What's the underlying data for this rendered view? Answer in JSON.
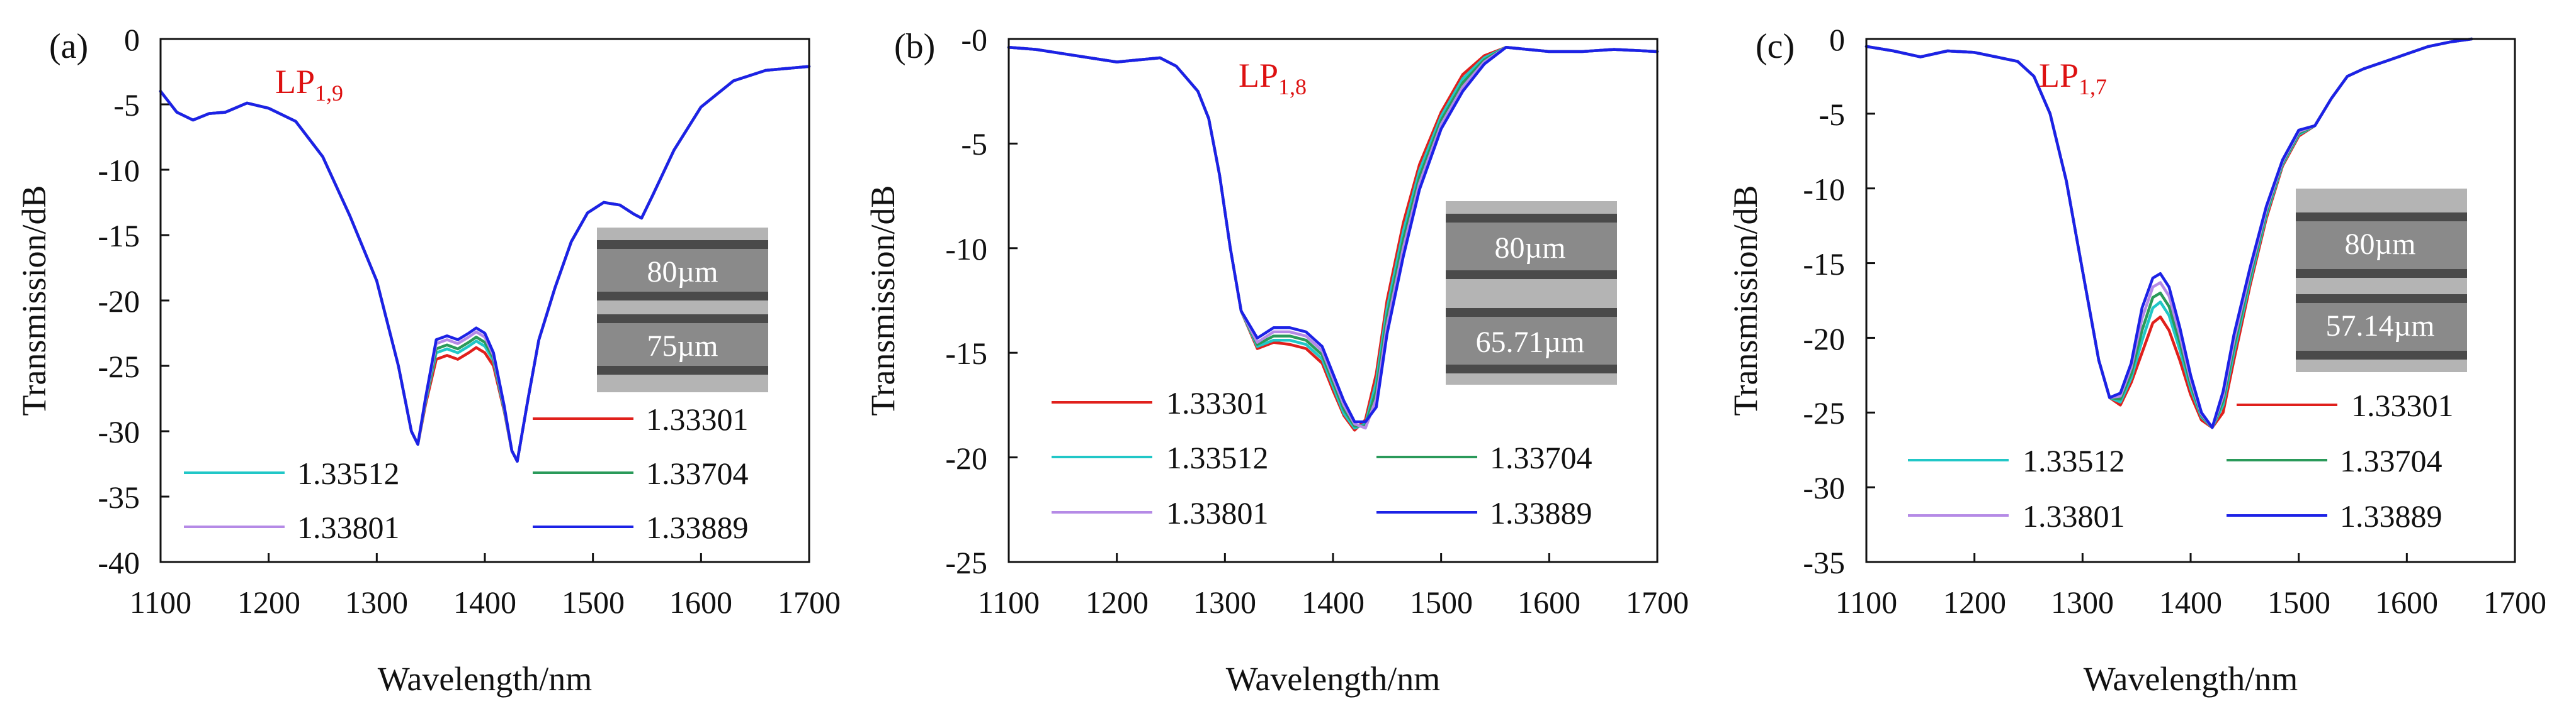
{
  "figure": {
    "series_colors": {
      "1.33301": "#e0201c",
      "1.33512": "#21c7c7",
      "1.33704": "#2a9a5a",
      "1.33801": "#b58ae6",
      "1.33889": "#1c22e6"
    },
    "inset_bg": "#b4b4b4",
    "annotation_color": "#dd1111"
  },
  "chart_data": [
    {
      "type": "line",
      "panel_label": "(a)",
      "xlabel": "Wavelength/nm",
      "ylabel": "Transmission/dB",
      "xlim": [
        1100,
        1700
      ],
      "ylim": [
        -40,
        0
      ],
      "xticks": [
        "1100",
        "1200",
        "1300",
        "1400",
        "1500",
        "1600",
        "1700"
      ],
      "yticks": [
        "0",
        "-5",
        "-10",
        "-15",
        "-20",
        "-25",
        "-30",
        "-35",
        "-40"
      ],
      "annotation": {
        "text": "LP",
        "sub": "1,9"
      },
      "inset": {
        "top_label": "80µm",
        "bottom_label": "75µm"
      },
      "legend": [
        {
          "name": "1.33301"
        },
        {
          "name": "1.33512"
        },
        {
          "name": "1.33704"
        },
        {
          "name": "1.33801"
        },
        {
          "name": "1.33889"
        }
      ],
      "x": [
        1100,
        1115,
        1130,
        1145,
        1160,
        1180,
        1200,
        1225,
        1250,
        1275,
        1300,
        1320,
        1332,
        1338,
        1345,
        1355,
        1365,
        1375,
        1385,
        1392,
        1400,
        1408,
        1418,
        1425,
        1430,
        1440,
        1450,
        1465,
        1480,
        1495,
        1510,
        1525,
        1538,
        1545,
        1555,
        1575,
        1600,
        1630,
        1660,
        1700
      ],
      "series": [
        {
          "name": "1.33301",
          "values": [
            -4,
            -5.6,
            -6.2,
            -5.7,
            -5.6,
            -4.9,
            -5.3,
            -6.3,
            -9,
            -13.5,
            -18.5,
            -25,
            -30,
            -31,
            -28,
            -24.5,
            -24.2,
            -24.5,
            -24,
            -23.6,
            -24,
            -25,
            -28.5,
            -31.5,
            -32.3,
            -27.5,
            -23,
            -19,
            -15.5,
            -13.3,
            -12.5,
            -12.7,
            -13.4,
            -13.7,
            -12,
            -8.5,
            -5.2,
            -3.2,
            -2.4,
            -2.1
          ]
        },
        {
          "name": "1.33512",
          "values": [
            -4,
            -5.6,
            -6.2,
            -5.7,
            -5.6,
            -4.9,
            -5.3,
            -6.3,
            -9,
            -13.5,
            -18.5,
            -25,
            -30,
            -31,
            -27.8,
            -24,
            -23.7,
            -24,
            -23.5,
            -23.1,
            -23.5,
            -24.6,
            -28.4,
            -31.5,
            -32.3,
            -27.5,
            -23,
            -19,
            -15.5,
            -13.3,
            -12.5,
            -12.7,
            -13.4,
            -13.7,
            -12,
            -8.5,
            -5.2,
            -3.2,
            -2.4,
            -2.1
          ]
        },
        {
          "name": "1.33704",
          "values": [
            -4,
            -5.6,
            -6.2,
            -5.7,
            -5.6,
            -4.9,
            -5.3,
            -6.3,
            -9,
            -13.5,
            -18.5,
            -25,
            -30,
            -31,
            -27.7,
            -23.7,
            -23.4,
            -23.7,
            -23.2,
            -22.8,
            -23.2,
            -24.4,
            -28.3,
            -31.5,
            -32.3,
            -27.5,
            -23,
            -19,
            -15.5,
            -13.3,
            -12.5,
            -12.7,
            -13.4,
            -13.7,
            -12,
            -8.5,
            -5.2,
            -3.2,
            -2.4,
            -2.1
          ]
        },
        {
          "name": "1.33801",
          "values": [
            -4,
            -5.6,
            -6.2,
            -5.7,
            -5.6,
            -4.9,
            -5.3,
            -6.3,
            -9,
            -13.5,
            -18.5,
            -25,
            -30,
            -31,
            -27.6,
            -23.3,
            -23,
            -23.3,
            -22.8,
            -22.4,
            -22.8,
            -24.2,
            -28.2,
            -31.5,
            -32.3,
            -27.5,
            -23,
            -19,
            -15.5,
            -13.3,
            -12.5,
            -12.7,
            -13.4,
            -13.7,
            -12,
            -8.5,
            -5.2,
            -3.2,
            -2.4,
            -2.1
          ]
        },
        {
          "name": "1.33889",
          "values": [
            -4,
            -5.6,
            -6.2,
            -5.7,
            -5.6,
            -4.9,
            -5.3,
            -6.3,
            -9,
            -13.5,
            -18.5,
            -25,
            -30,
            -31,
            -27.5,
            -23,
            -22.7,
            -23,
            -22.5,
            -22.1,
            -22.5,
            -24,
            -28.1,
            -31.5,
            -32.3,
            -27.5,
            -23,
            -19,
            -15.5,
            -13.3,
            -12.5,
            -12.7,
            -13.4,
            -13.7,
            -12,
            -8.5,
            -5.2,
            -3.2,
            -2.4,
            -2.1
          ]
        }
      ]
    },
    {
      "type": "line",
      "panel_label": "(b)",
      "xlabel": "Wavelength/nm",
      "ylabel": "Transmission/dB",
      "xlim": [
        1100,
        1700
      ],
      "ylim": [
        -25,
        0
      ],
      "xticks": [
        "1100",
        "1200",
        "1300",
        "1400",
        "1500",
        "1600",
        "1700"
      ],
      "yticks": [
        "-0",
        "-5",
        "-10",
        "-15",
        "-20",
        "-25"
      ],
      "annotation": {
        "text": "LP",
        "sub": "1,8"
      },
      "inset": {
        "top_label": "80µm",
        "bottom_label": "65.71µm"
      },
      "legend": [
        {
          "name": "1.33301"
        },
        {
          "name": "1.33512"
        },
        {
          "name": "1.33704"
        },
        {
          "name": "1.33801"
        },
        {
          "name": "1.33889"
        }
      ],
      "x": [
        1100,
        1125,
        1150,
        1175,
        1200,
        1220,
        1240,
        1255,
        1265,
        1275,
        1285,
        1295,
        1305,
        1315,
        1330,
        1345,
        1360,
        1375,
        1390,
        1400,
        1410,
        1420,
        1430,
        1440,
        1450,
        1465,
        1480,
        1500,
        1520,
        1540,
        1560,
        1580,
        1600,
        1630,
        1660,
        1700
      ],
      "series": [
        {
          "name": "1.33301",
          "values": [
            -0.4,
            -0.5,
            -0.7,
            -0.9,
            -1.1,
            -1.0,
            -0.9,
            -1.3,
            -1.9,
            -2.5,
            -3.8,
            -6.5,
            -10,
            -13,
            -14.8,
            -14.5,
            -14.6,
            -14.8,
            -15.5,
            -16.8,
            -18,
            -18.7,
            -18.2,
            -16,
            -12.5,
            -8.8,
            -6,
            -3.5,
            -1.7,
            -0.8,
            -0.4,
            -0.5,
            -0.6,
            -0.6,
            -0.5,
            -0.6
          ]
        },
        {
          "name": "1.33512",
          "values": [
            -0.4,
            -0.5,
            -0.7,
            -0.9,
            -1.1,
            -1.0,
            -0.9,
            -1.3,
            -1.9,
            -2.5,
            -3.8,
            -6.5,
            -10,
            -13,
            -14.7,
            -14.4,
            -14.4,
            -14.6,
            -15.3,
            -16.6,
            -17.9,
            -18.6,
            -18.4,
            -16.4,
            -12.9,
            -9.2,
            -6.3,
            -3.7,
            -1.9,
            -0.9,
            -0.4,
            -0.5,
            -0.6,
            -0.6,
            -0.5,
            -0.6
          ]
        },
        {
          "name": "1.33704",
          "values": [
            -0.4,
            -0.5,
            -0.7,
            -0.9,
            -1.1,
            -1.0,
            -0.9,
            -1.3,
            -1.9,
            -2.5,
            -3.8,
            -6.5,
            -10,
            -13,
            -14.6,
            -14.2,
            -14.2,
            -14.4,
            -15.1,
            -16.4,
            -17.7,
            -18.5,
            -18.5,
            -16.8,
            -13.3,
            -9.6,
            -6.6,
            -3.9,
            -2.1,
            -1.0,
            -0.4,
            -0.5,
            -0.6,
            -0.6,
            -0.5,
            -0.6
          ]
        },
        {
          "name": "1.33801",
          "values": [
            -0.4,
            -0.5,
            -0.7,
            -0.9,
            -1.1,
            -1.0,
            -0.9,
            -1.3,
            -1.9,
            -2.5,
            -3.8,
            -6.5,
            -10,
            -13,
            -14.5,
            -14.0,
            -14.0,
            -14.2,
            -14.9,
            -16.2,
            -17.5,
            -18.4,
            -18.6,
            -17.2,
            -13.7,
            -10.0,
            -6.9,
            -4.1,
            -2.3,
            -1.1,
            -0.4,
            -0.5,
            -0.6,
            -0.6,
            -0.5,
            -0.6
          ]
        },
        {
          "name": "1.33889",
          "values": [
            -0.4,
            -0.5,
            -0.7,
            -0.9,
            -1.1,
            -1.0,
            -0.9,
            -1.3,
            -1.9,
            -2.5,
            -3.8,
            -6.5,
            -10,
            -13,
            -14.3,
            -13.8,
            -13.8,
            -14.0,
            -14.7,
            -16.0,
            -17.3,
            -18.3,
            -18.3,
            -17.6,
            -14.1,
            -10.4,
            -7.2,
            -4.3,
            -2.5,
            -1.2,
            -0.4,
            -0.5,
            -0.6,
            -0.6,
            -0.5,
            -0.6
          ]
        }
      ]
    },
    {
      "type": "line",
      "panel_label": "(c)",
      "xlabel": "Wavelength/nm",
      "ylabel": "Transmission/dB",
      "xlim": [
        1100,
        1700
      ],
      "ylim": [
        -35,
        0
      ],
      "xticks": [
        "1100",
        "1200",
        "1300",
        "1400",
        "1500",
        "1600",
        "1700"
      ],
      "yticks": [
        "0",
        "-5",
        "-10",
        "-15",
        "-20",
        "-25",
        "-30",
        "-35"
      ],
      "annotation": {
        "text": "LP",
        "sub": "1,7"
      },
      "inset": {
        "top_label": "80µm",
        "bottom_label": "57.14µm"
      },
      "legend": [
        {
          "name": "1.33301"
        },
        {
          "name": "1.33512"
        },
        {
          "name": "1.33704"
        },
        {
          "name": "1.33801"
        },
        {
          "name": "1.33889"
        }
      ],
      "x": [
        1100,
        1125,
        1150,
        1175,
        1200,
        1220,
        1240,
        1255,
        1270,
        1285,
        1300,
        1315,
        1325,
        1335,
        1345,
        1355,
        1365,
        1372,
        1380,
        1390,
        1400,
        1410,
        1420,
        1430,
        1440,
        1455,
        1470,
        1485,
        1500,
        1515,
        1530,
        1545,
        1560,
        1580,
        1600,
        1620,
        1640,
        1660
      ],
      "series": [
        {
          "name": "1.33301",
          "values": [
            -0.5,
            -0.8,
            -1.2,
            -0.8,
            -0.9,
            -1.2,
            -1.5,
            -2.5,
            -5,
            -9.5,
            -15.5,
            -21.5,
            -24,
            -24.5,
            -23,
            -21,
            -19,
            -18.6,
            -19.5,
            -21.5,
            -23.8,
            -25.5,
            -26,
            -25,
            -21.5,
            -16.5,
            -12,
            -8.5,
            -6.5,
            -5.8,
            -4,
            -2.5,
            -2,
            -1.5,
            -1,
            -0.5,
            -0.2,
            0.1
          ]
        },
        {
          "name": "1.33512",
          "values": [
            -0.5,
            -0.8,
            -1.2,
            -0.8,
            -0.9,
            -1.2,
            -1.5,
            -2.5,
            -5,
            -9.5,
            -15.5,
            -21.5,
            -24,
            -24.3,
            -22.7,
            -20.2,
            -18.0,
            -17.6,
            -18.5,
            -20.8,
            -23.4,
            -25.3,
            -26,
            -24.5,
            -21.0,
            -16.2,
            -11.8,
            -8.4,
            -6.4,
            -5.8,
            -4,
            -2.5,
            -2,
            -1.5,
            -1,
            -0.5,
            -0.2,
            0.1
          ]
        },
        {
          "name": "1.33704",
          "values": [
            -0.5,
            -0.8,
            -1.2,
            -0.8,
            -0.9,
            -1.2,
            -1.5,
            -2.5,
            -5,
            -9.5,
            -15.5,
            -21.5,
            -24,
            -24.1,
            -22.4,
            -19.5,
            -17.3,
            -17.0,
            -17.9,
            -20.3,
            -23.1,
            -25.2,
            -26,
            -24.2,
            -20.6,
            -15.9,
            -11.6,
            -8.3,
            -6.3,
            -5.8,
            -4,
            -2.5,
            -2,
            -1.5,
            -1,
            -0.5,
            -0.2,
            0.1
          ]
        },
        {
          "name": "1.33801",
          "values": [
            -0.5,
            -0.8,
            -1.2,
            -0.8,
            -0.9,
            -1.2,
            -1.5,
            -2.5,
            -5,
            -9.5,
            -15.5,
            -21.5,
            -24,
            -23.9,
            -22.0,
            -18.7,
            -16.6,
            -16.3,
            -17.2,
            -19.8,
            -22.8,
            -25.1,
            -26,
            -23.9,
            -20.2,
            -15.6,
            -11.4,
            -8.2,
            -6.2,
            -5.8,
            -4,
            -2.5,
            -2,
            -1.5,
            -1,
            -0.5,
            -0.2,
            0.1
          ]
        },
        {
          "name": "1.33889",
          "values": [
            -0.5,
            -0.8,
            -1.2,
            -0.8,
            -0.9,
            -1.2,
            -1.5,
            -2.5,
            -5,
            -9.5,
            -15.5,
            -21.5,
            -24,
            -23.7,
            -21.7,
            -18.0,
            -16.0,
            -15.7,
            -16.6,
            -19.3,
            -22.5,
            -25.0,
            -26,
            -23.6,
            -19.8,
            -15.3,
            -11.2,
            -8.1,
            -6.1,
            -5.8,
            -4,
            -2.5,
            -2,
            -1.5,
            -1,
            -0.5,
            -0.2,
            0.1
          ]
        }
      ]
    }
  ]
}
